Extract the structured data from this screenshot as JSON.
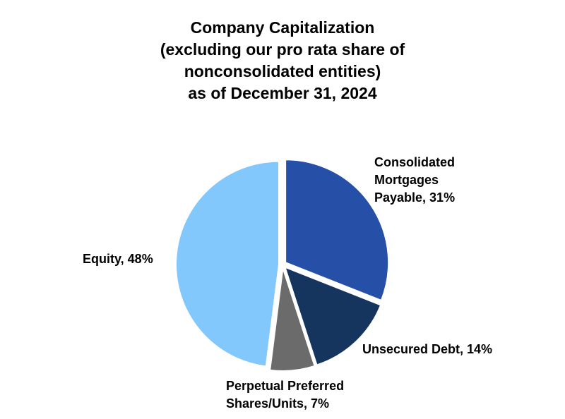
{
  "chart_data": {
    "type": "pie",
    "title_lines": [
      "Company Capitalization",
      "(excluding our pro rata share of",
      "nonconsolidated entities)",
      "as of December 31, 2024"
    ],
    "slices": [
      {
        "label_lines": [
          "Consolidated",
          "Mortgages",
          "Payable, 31%"
        ],
        "value": 31,
        "color": "#2650a8"
      },
      {
        "label_lines": [
          "Unsecured Debt, 14%"
        ],
        "value": 14,
        "color": "#15345e"
      },
      {
        "label_lines": [
          "Perpetual Preferred",
          "Shares/Units, 7%"
        ],
        "value": 7,
        "color": "#6b6b6b"
      },
      {
        "label_lines": [
          "Equity, 48%"
        ],
        "value": 48,
        "color": "#82c8fc"
      }
    ],
    "start": "12 o'clock",
    "direction": "clockwise",
    "exploded": true
  }
}
